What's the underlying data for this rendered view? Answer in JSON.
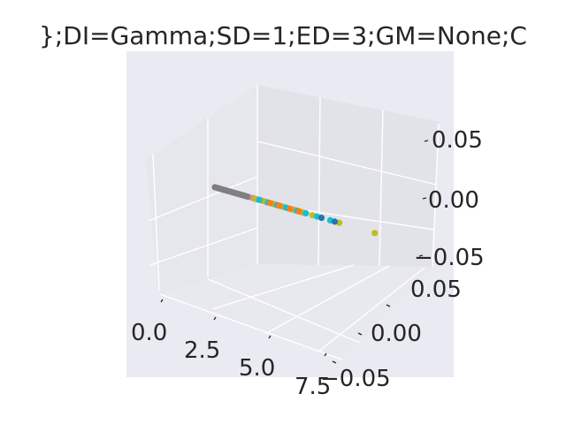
{
  "chart_data": {
    "type": "scatter",
    "projection": "3d",
    "title": "};DI=Gamma;SD=1;ED=3;GM=None;C",
    "xlabel": "",
    "ylabel": "",
    "zlabel": "",
    "grid": true,
    "x_ticks": [
      "0.0",
      "2.5",
      "5.0",
      "7.5"
    ],
    "y_ticks": [
      "0.05",
      "0.00",
      "−0.05"
    ],
    "z_ticks": [
      "0.05",
      "0.00",
      "−0.05"
    ],
    "xlim": [
      -0.5,
      8.5
    ],
    "ylim": [
      -0.06,
      0.06
    ],
    "zlim": [
      -0.06,
      0.06
    ],
    "series": [
      {
        "color": "#7f7f7f",
        "x": [
          0.0,
          0.1,
          0.2,
          0.3,
          0.4,
          0.5,
          0.6,
          0.7,
          0.8,
          0.9,
          1.0,
          1.1,
          1.2,
          1.3,
          1.4,
          1.5
        ],
        "y": [
          0,
          0,
          0,
          0,
          0,
          0,
          0,
          0,
          0,
          0,
          0,
          0,
          0,
          0,
          0,
          0
        ],
        "z": [
          0,
          0,
          0,
          0,
          0,
          0,
          0,
          0,
          0,
          0,
          0,
          0,
          0,
          0,
          0,
          0
        ]
      },
      {
        "color": "#e377c2",
        "x": [
          1.7,
          1.9,
          2.1,
          2.3,
          2.6,
          3.0,
          3.3,
          3.6,
          4.0
        ],
        "y": [
          0,
          0,
          0,
          0,
          0,
          0,
          0,
          0,
          0
        ],
        "z": [
          0,
          0,
          0,
          0,
          0,
          0,
          0,
          0,
          0
        ]
      },
      {
        "color": "#bcbd22",
        "x": [
          1.8,
          2.2,
          2.7,
          3.1,
          3.5,
          3.9,
          4.4,
          5.6,
          7.2
        ],
        "y": [
          0,
          0,
          0,
          0,
          0,
          0,
          0,
          0,
          0
        ],
        "z": [
          0,
          0,
          0,
          0,
          0,
          0,
          0,
          0,
          0
        ]
      },
      {
        "color": "#17becf",
        "x": [
          2.0,
          2.4,
          2.8,
          3.2,
          3.7,
          4.1,
          4.6,
          5.2
        ],
        "y": [
          0,
          0,
          0,
          0,
          0,
          0,
          0,
          0
        ],
        "z": [
          0,
          0,
          0,
          0,
          0,
          0,
          0,
          0
        ]
      },
      {
        "color": "#ff7f0e",
        "x": [
          2.5,
          2.9,
          3.4,
          3.8
        ],
        "y": [
          0,
          0,
          0,
          0
        ],
        "z": [
          0,
          0,
          0,
          0
        ]
      },
      {
        "color": "#1f77b4",
        "x": [
          4.8,
          5.4
        ],
        "y": [
          0,
          0
        ],
        "z": [
          0,
          0
        ]
      }
    ]
  }
}
